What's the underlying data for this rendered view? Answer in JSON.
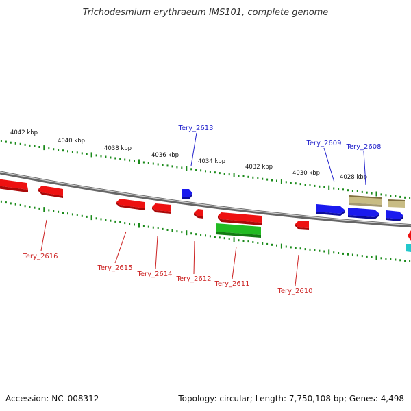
{
  "title": "Trichodesmium erythraeum IMS101, complete genome",
  "accession": "Accession: NC_008312",
  "topology": "Topology: circular; Length: 7,750,108 bp; Genes: 4,498",
  "tick_labels": [
    "4042 kbp",
    "4040 kbp",
    "4038 kbp",
    "4036 kbp",
    "4034 kbp",
    "4032 kbp",
    "4030 kbp",
    "4028 kbp"
  ],
  "gene_labels": {
    "tery_2613": "Tery_2613",
    "tery_2609": "Tery_2609",
    "tery_2608": "Tery_2608",
    "tery_2616": "Tery_2616",
    "tery_2615": "Tery_2615",
    "tery_2614": "Tery_2614",
    "tery_2612": "Tery_2612",
    "tery_2611": "Tery_2611",
    "tery_2610": "Tery_2610"
  },
  "colors": {
    "forward_gene": "#1a1aee",
    "reverse_gene": "#ee1111",
    "green_gene": "#22bb22",
    "khaki_gene": "#c8bc84",
    "cyan_gene": "#22c8cc",
    "tick_mark": "#1a8a1a",
    "backbone": "#888888"
  }
}
